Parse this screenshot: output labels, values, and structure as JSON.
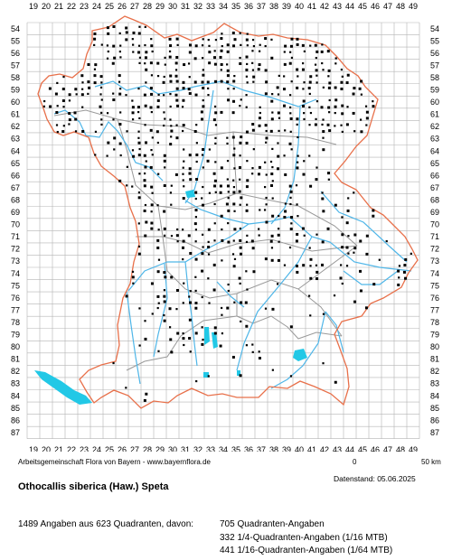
{
  "x_axis_labels": [
    "19",
    "20",
    "21",
    "22",
    "23",
    "24",
    "25",
    "26",
    "27",
    "28",
    "29",
    "30",
    "31",
    "32",
    "33",
    "34",
    "35",
    "36",
    "37",
    "38",
    "39",
    "40",
    "41",
    "42",
    "43",
    "44",
    "45",
    "46",
    "47",
    "48",
    "49"
  ],
  "y_axis_labels": [
    "54",
    "55",
    "56",
    "57",
    "58",
    "59",
    "60",
    "61",
    "62",
    "63",
    "64",
    "65",
    "66",
    "67",
    "68",
    "69",
    "70",
    "71",
    "72",
    "73",
    "74",
    "75",
    "76",
    "77",
    "78",
    "79",
    "80",
    "81",
    "82",
    "83",
    "84",
    "85",
    "86",
    "87"
  ],
  "credit": "Arbeitsgemeinschaft Flora von Bayern - www.bayernflora.de",
  "scale": {
    "zero": "0",
    "label": "50 km"
  },
  "date_line": "Datenstand: 05.06.2025",
  "species": "Othocallis siberica (Haw.) Speta",
  "stats": {
    "total": "1489 Angaben aus 623 Quadranten, davon:",
    "line1": "705 Quadranten-Angaben",
    "line2": "332 1/4-Quadranten-Angaben (1/16 MTB)",
    "line3": "441 1/16-Quadranten-Angaben (1/64 MTB)"
  },
  "colors": {
    "grid": "#b4b4b4",
    "border": "#e8704a",
    "district": "#999999",
    "water": "#4fb6e8",
    "lake": "#22c8e6",
    "dot": "#000000"
  }
}
